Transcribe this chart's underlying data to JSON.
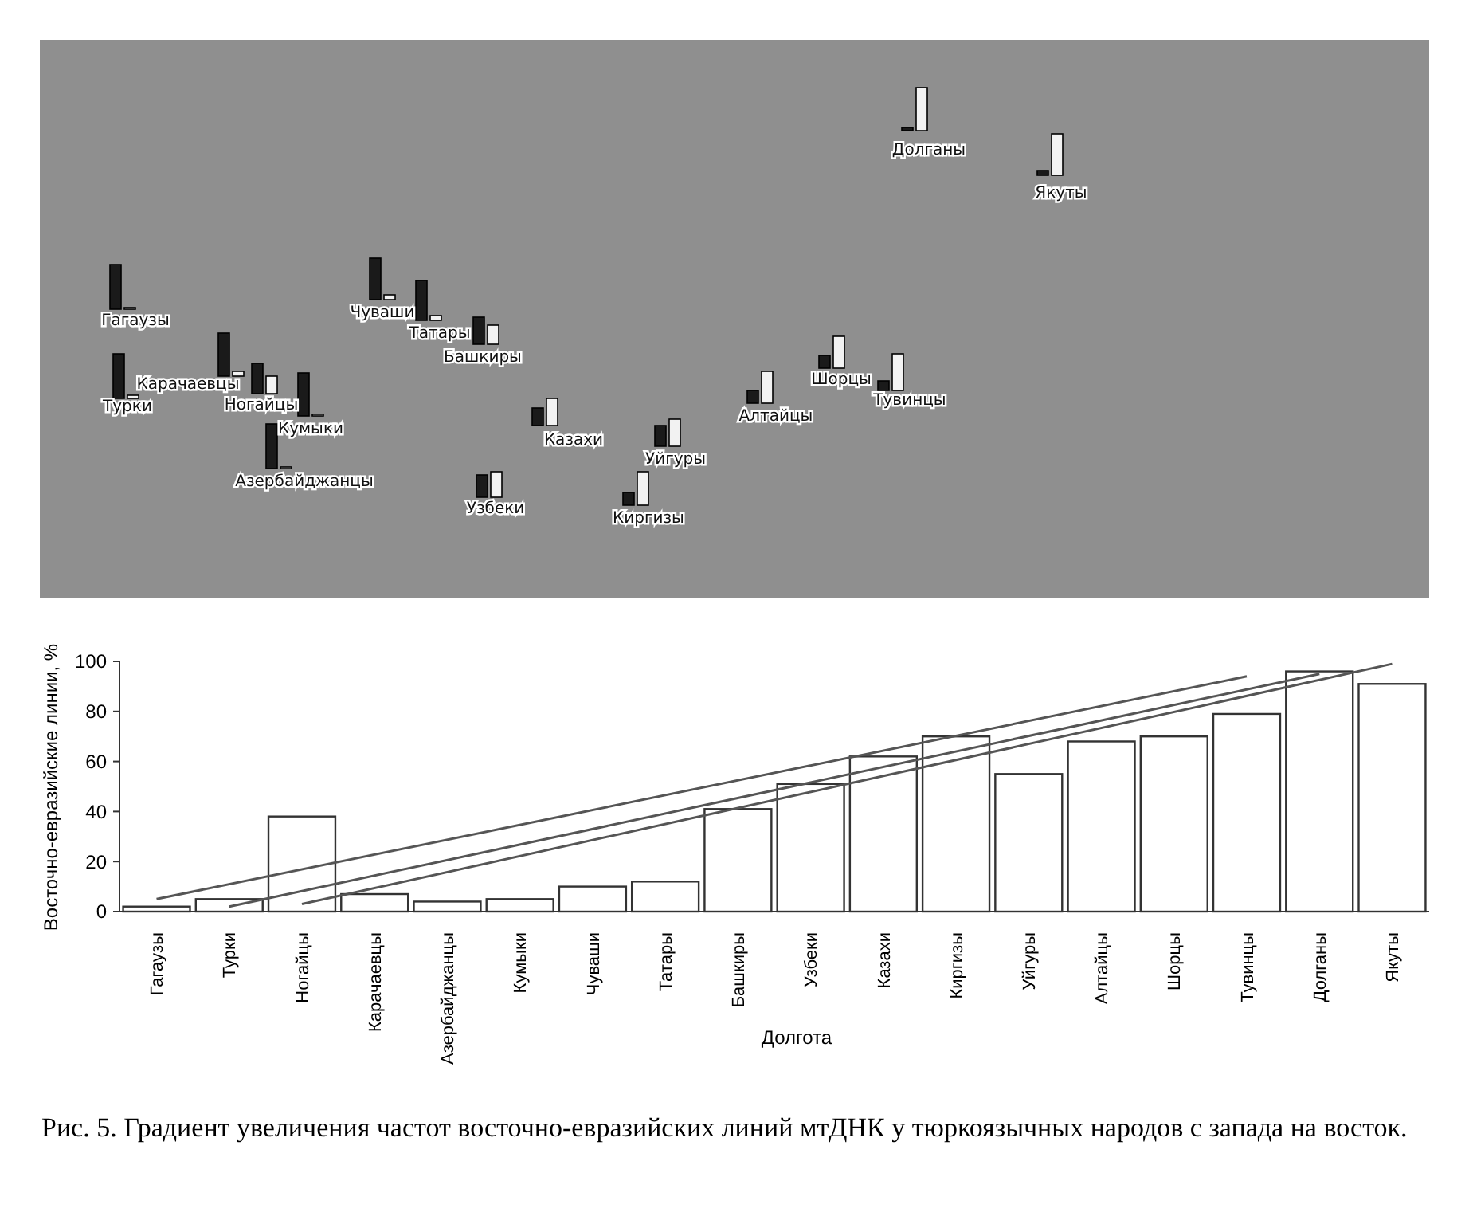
{
  "chart_data": [
    {
      "type": "other",
      "annotations": [
        "Гагаузы",
        "Турки",
        "Ногайцы",
        "Карачаевцы",
        "Азербайджанцы",
        "Кумыки",
        "Чуваши",
        "Татары",
        "Башкиры",
        "Узбеки",
        "Казахи",
        "Киргизы",
        "Уйгуры",
        "Алтайцы",
        "Шорцы",
        "Тувинцы",
        "Долганы",
        "Якуты"
      ]
    },
    {
      "type": "bar",
      "ylabel": "Восточно-евразийские линии, %",
      "xlabel": "Долгота",
      "categories": [
        "Гагаузы",
        "Турки",
        "Ногайцы",
        "Карачаевцы",
        "Азербайджанцы",
        "Кумыки",
        "Чуваши",
        "Татары",
        "Башкиры",
        "Узбеки",
        "Казахи",
        "Киргизы",
        "Уйгуры",
        "Алтайцы",
        "Шорцы",
        "Тувинцы",
        "Долганы",
        "Якуты"
      ],
      "series": [
        {
          "color": "#ffffff",
          "values": [
            2,
            5,
            38,
            7,
            4,
            5,
            10,
            12,
            41,
            51,
            62,
            70,
            55,
            68,
            70,
            79,
            96,
            91
          ]
        },
        {
          "type": "line",
          "color": "#555555",
          "x": [
            "Гагаузы",
            "Тувинцы"
          ],
          "values": [
            5,
            94
          ]
        },
        {
          "type": "line",
          "color": "#555555",
          "x": [
            "Турки",
            "Долганы"
          ],
          "values": [
            2,
            95
          ]
        },
        {
          "type": "line",
          "color": "#555555",
          "x": [
            "Ногайцы",
            "Якуты"
          ],
          "values": [
            3,
            99
          ]
        }
      ],
      "ylim": [
        0,
        100
      ],
      "yticks": [
        0,
        20,
        40,
        60,
        80,
        100
      ],
      "annotations": [
        "Рис. 5. Градиент увеличения частот восточно-евразийских линий мтДНК у тюркоязычных народов с запада на восток."
      ]
    }
  ]
}
